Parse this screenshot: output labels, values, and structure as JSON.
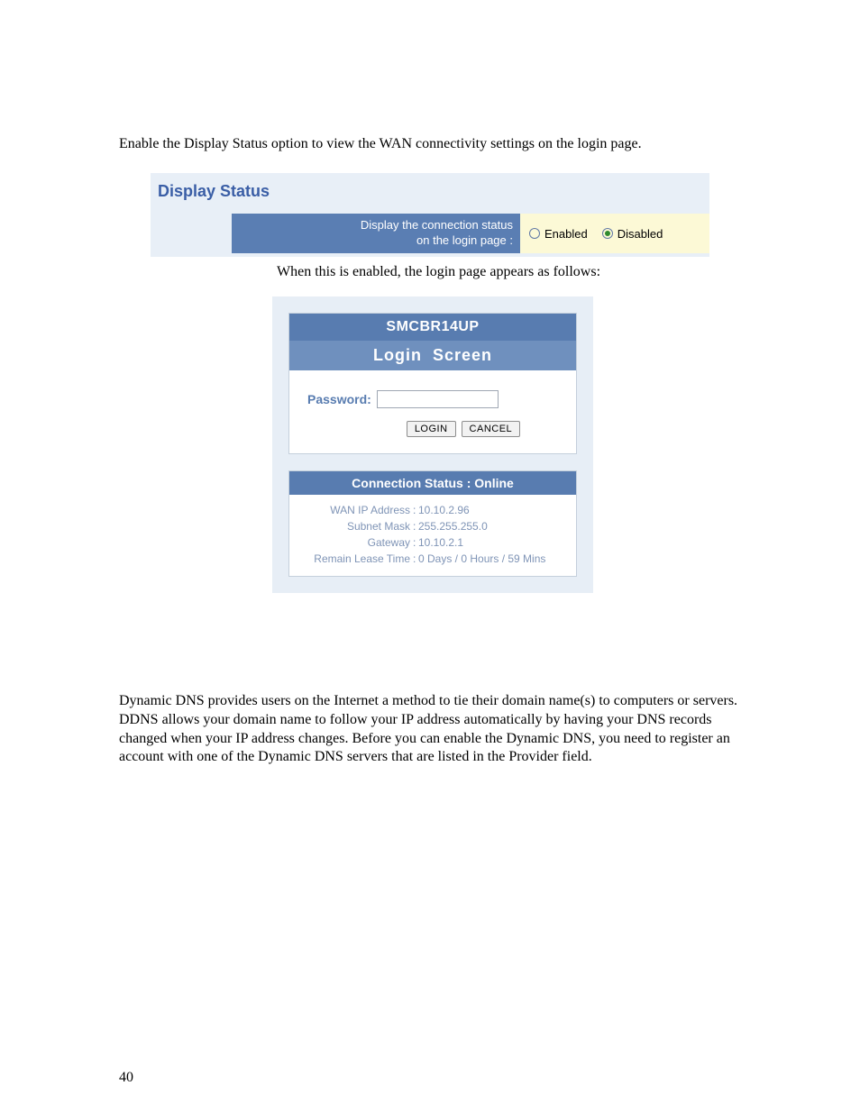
{
  "intro_text": "Enable the Display Status option to view the WAN connectivity settings on the login page.",
  "display_status": {
    "title": "Display Status",
    "label_line1": "Display the connection status",
    "label_line2": "on the login page :",
    "enabled_label": "Enabled",
    "disabled_label": "Disabled",
    "selected": "disabled"
  },
  "caption_text": "When this is enabled, the login page appears as follows:",
  "login": {
    "device_name": "SMCBR14UP",
    "screen_title": "Login  Screen",
    "password_label": "Password:",
    "login_btn": "LOGIN",
    "cancel_btn": "CANCEL"
  },
  "conn_status": {
    "header_prefix": "Connection Status : ",
    "header_value": "Online",
    "rows": [
      {
        "key": "WAN IP Address",
        "val": "10.10.2.96"
      },
      {
        "key": "Subnet Mask",
        "val": "255.255.255.0"
      },
      {
        "key": "Gateway",
        "val": "10.10.2.1"
      },
      {
        "key": "Remain Lease Time",
        "val": "0 Days / 0 Hours / 59 Mins"
      }
    ]
  },
  "ddns_text": "Dynamic DNS provides users on the Internet a method to tie their domain name(s) to computers or servers. DDNS allows your domain name to follow your IP address automatically by having your DNS records changed when your IP address changes. Before you can enable the Dynamic DNS, you need to register an account with one of the Dynamic DNS servers that are listed in the Provider field.",
  "page_number": "40",
  "colors": {
    "panel_bg": "#e8eff7",
    "panel_title": "#3a5ea6",
    "label_cell_bg": "#5a7eb3",
    "value_cell_bg": "#fcf9d6",
    "login_header_bg": "#587cb0",
    "login_sub_bg": "#6f90be",
    "status_text": "#7f94b6"
  }
}
